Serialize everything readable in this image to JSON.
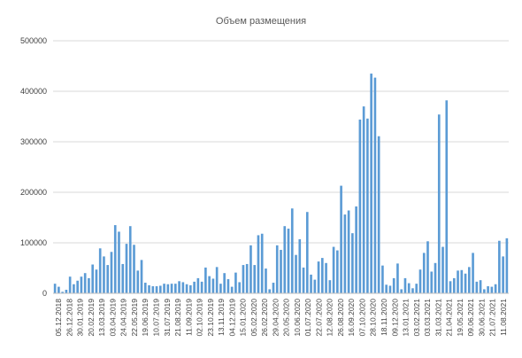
{
  "chart_data": {
    "type": "bar",
    "title": "Объем размещения",
    "xlabel": "",
    "ylabel": "",
    "ylim": [
      0,
      500000
    ],
    "yticks": [
      "0",
      "100000",
      "200000",
      "300000",
      "400000",
      "500000"
    ],
    "grid": true,
    "legend": "none",
    "bar_color": "#5b9bd5",
    "xtick_labels": [
      "05.12.2018",
      "26.12.2018",
      "30.01.2019",
      "20.02.2019",
      "13.03.2019",
      "03.04.2019",
      "24.04.2019",
      "22.05.2019",
      "19.06.2019",
      "10.07.2019",
      "31.07.2019",
      "21.08.2019",
      "11.09.2019",
      "02.10.2019",
      "23.10.2019",
      "13.11.2019",
      "04.12.2019",
      "15.01.2020",
      "05.02.2020",
      "26.02.2020",
      "29.04.2020",
      "20.05.2020",
      "10.06.2020",
      "01.07.2020",
      "22.07.2020",
      "12.08.2020",
      "26.08.2020",
      "16.09.2020",
      "07.10.2020",
      "28.10.2020",
      "18.11.2020",
      "09.12.2020",
      "13.01.2021",
      "03.02.2021",
      "03.03.2021",
      "31.03.2021",
      "21.04.2021",
      "19.05.2021",
      "09.06.2021",
      "30.06.2021",
      "21.07.2021",
      "11.08.2021"
    ],
    "values": [
      19000,
      13000,
      3000,
      7000,
      33000,
      18000,
      25000,
      33000,
      40000,
      30000,
      57000,
      47000,
      89000,
      73000,
      56000,
      82000,
      135000,
      122000,
      58000,
      98000,
      133000,
      96000,
      45000,
      66000,
      21000,
      16000,
      14000,
      14000,
      15000,
      19000,
      18000,
      19000,
      19000,
      24000,
      22000,
      18000,
      16000,
      23000,
      30000,
      23000,
      51000,
      34000,
      29000,
      52000,
      19000,
      40000,
      28000,
      13000,
      41000,
      22000,
      56000,
      58000,
      95000,
      56000,
      115000,
      118000,
      49000,
      8000,
      21000,
      95000,
      86000,
      133000,
      128000,
      168000,
      76000,
      107000,
      51000,
      161000,
      37000,
      27000,
      63000,
      70000,
      60000,
      26000,
      92000,
      85000,
      213000,
      156000,
      164000,
      119000,
      172000,
      344000,
      370000,
      346000,
      435000,
      427000,
      311000,
      55000,
      17000,
      15000,
      30000,
      59000,
      8000,
      30000,
      20000,
      10000,
      19000,
      47000,
      80000,
      103000,
      43000,
      60000,
      354000,
      92000,
      382000,
      24000,
      30000,
      45000,
      46000,
      39000,
      52000,
      80000,
      23000,
      26000,
      8000,
      14000,
      13000,
      18000,
      104000,
      73000,
      109000
    ]
  }
}
